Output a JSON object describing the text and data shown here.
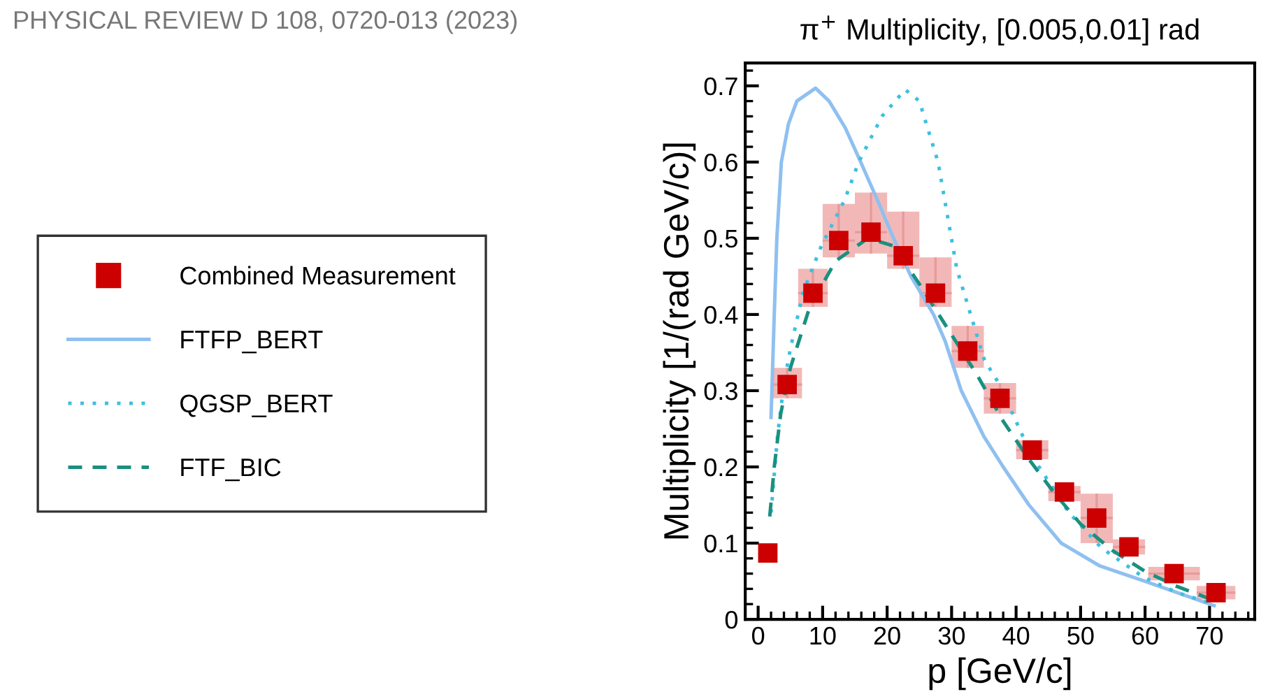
{
  "chart_data": {
    "type": "scatter",
    "title": "π$^{+}$ Multiplicity, [0.005,0.01] rad",
    "xlabel": "p [GeV/c]",
    "ylabel": "Multiplicity [1/(rad GeV/c)]",
    "annotations": [
      "PHYSICAL REVIEW D 108, 0720-013 (2023)"
    ],
    "xlim": [
      -2,
      77
    ],
    "ylim": [
      0,
      0.73
    ],
    "xticks": [
      0,
      10,
      20,
      30,
      40,
      50,
      60,
      70
    ],
    "yticks": [
      0,
      0.1,
      0.2,
      0.3,
      0.4,
      0.5,
      0.6,
      0.7
    ],
    "grid": false,
    "legend": "left",
    "series": [
      {
        "name": "Combined Measurement",
        "marker": "square",
        "color": "#cc0000",
        "x": [
          1.5,
          4.5,
          8.5,
          12.5,
          17.5,
          22.5,
          27.5,
          32.5,
          37.5,
          42.5,
          47.5,
          52.5,
          57.5,
          64.5,
          71
        ],
        "values": [
          0.087,
          0.308,
          0.428,
          0.497,
          0.508,
          0.477,
          0.428,
          0.352,
          0.29,
          0.222,
          0.167,
          0.133,
          0.095,
          0.06,
          0.035
        ],
        "errors": [
          null,
          [
            0.29,
            0.33
          ],
          [
            0.41,
            0.46
          ],
          [
            0.475,
            0.545
          ],
          [
            0.48,
            0.56
          ],
          [
            0.46,
            0.535
          ],
          [
            0.41,
            0.475
          ],
          [
            0.33,
            0.385
          ],
          [
            0.27,
            0.31
          ],
          [
            0.21,
            0.235
          ],
          [
            0.155,
            0.175
          ],
          [
            0.1,
            0.165
          ],
          [
            0.085,
            0.105
          ],
          null,
          null
        ],
        "xerrors": [
          null,
          2.3,
          2.3,
          2.5,
          2.5,
          2.5,
          2.5,
          2.5,
          2.5,
          2.5,
          2.5,
          2.5,
          2.5,
          4,
          3
        ]
      },
      {
        "name": "FTFP_BERT",
        "type": "line",
        "line_style": "solid",
        "marker": "none",
        "color": "#8fc0f0",
        "x": [
          2,
          2.5,
          2.9,
          3.6,
          4.7,
          6,
          8.9,
          11,
          13.5,
          15.9,
          18.5,
          21,
          23.7,
          27.2,
          29,
          31.5,
          35,
          38,
          42,
          47,
          53,
          60,
          65,
          70.7
        ],
        "values": [
          0.265,
          0.4,
          0.5,
          0.6,
          0.65,
          0.68,
          0.697,
          0.68,
          0.645,
          0.6,
          0.55,
          0.5,
          0.45,
          0.4,
          0.365,
          0.3,
          0.24,
          0.2,
          0.15,
          0.1,
          0.07,
          0.05,
          0.035,
          0.018
        ]
      },
      {
        "name": "QGSP_BERT",
        "type": "line",
        "line_style": "dotted",
        "marker": "none",
        "color": "#3cc0e0",
        "x": [
          2,
          3,
          4,
          5,
          7,
          9.8,
          13.4,
          15.6,
          19.2,
          22.8,
          25,
          27.9,
          30.8,
          35.1,
          37.3,
          42.4,
          48.2,
          53.2,
          59.8,
          65,
          70.7
        ],
        "values": [
          0.14,
          0.24,
          0.31,
          0.355,
          0.43,
          0.49,
          0.55,
          0.6,
          0.66,
          0.695,
          0.68,
          0.6,
          0.46,
          0.34,
          0.31,
          0.215,
          0.14,
          0.094,
          0.055,
          0.035,
          0.02
        ]
      },
      {
        "name": "FTF_BIC",
        "type": "line",
        "line_style": "dashed",
        "marker": "none",
        "color": "#1a9080",
        "x": [
          1.8,
          2.5,
          3.5,
          5,
          8,
          12,
          17,
          21,
          25,
          28,
          31,
          34,
          38,
          42,
          46,
          50,
          55,
          60,
          65,
          70.7
        ],
        "values": [
          0.135,
          0.2,
          0.27,
          0.33,
          0.41,
          0.47,
          0.5,
          0.49,
          0.44,
          0.4,
          0.36,
          0.32,
          0.26,
          0.21,
          0.165,
          0.125,
          0.09,
          0.063,
          0.043,
          0.025
        ]
      }
    ]
  }
}
